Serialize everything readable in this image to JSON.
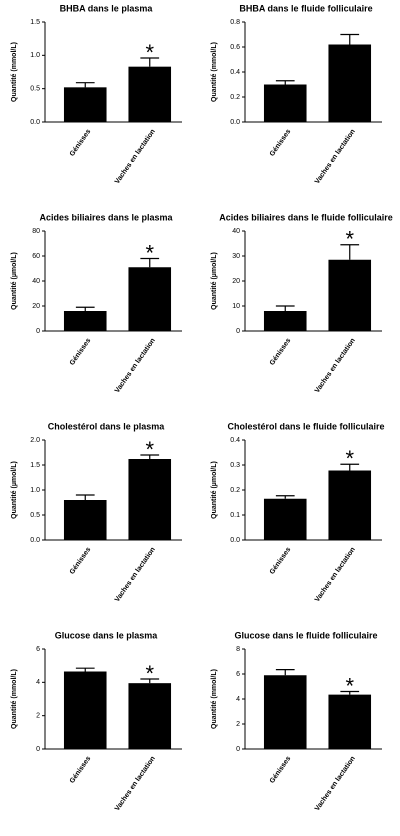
{
  "chart_data": [
    {
      "type": "bar",
      "title": "BHBA dans le plasma",
      "y_label": "Quantité (mmol/L)",
      "categories": [
        "Génisses",
        "Vaches en lactation"
      ],
      "values": [
        0.52,
        0.83
      ],
      "errors": [
        0.07,
        0.13
      ],
      "color": "#000000",
      "ylim": [
        0,
        1.5
      ],
      "yticks": [
        {
          "value": 0,
          "label": "0.0"
        },
        0.5,
        {
          "value": 1,
          "label": "1.0"
        },
        1.5
      ],
      "annotation": "*"
    },
    {
      "type": "bar",
      "title": "BHBA dans le fluide folliculaire",
      "y_label": "Quantité (mmol/L)",
      "categories": [
        "Génisses",
        "Vaches en lactation"
      ],
      "values": [
        0.3,
        0.62
      ],
      "errors": [
        0.03,
        0.08
      ],
      "color": "#000000",
      "ylim": [
        0,
        0.8
      ],
      "yticks": [
        {
          "value": 0,
          "label": "0.0"
        },
        0.2,
        0.4,
        0.6,
        0.8
      ]
    },
    {
      "type": "bar",
      "title": "Acides biliaires dans le plasma",
      "y_label": "Quantité (µmol/L)",
      "categories": [
        "Génisses",
        "Vaches en lactation"
      ],
      "values": [
        16,
        51
      ],
      "errors": [
        3,
        7
      ],
      "color": "#000000",
      "ylim": [
        0,
        80
      ],
      "yticks": [
        0,
        20,
        40,
        60,
        80
      ],
      "annotation": "*"
    },
    {
      "type": "bar",
      "title": "Acides biliaires dans le fluide folliculaire",
      "y_label": "Quantité (µmol/L)",
      "categories": [
        "Génisses",
        "Vaches en lactation"
      ],
      "values": [
        8,
        28.5
      ],
      "errors": [
        2,
        6
      ],
      "color": "#000000",
      "ylim": [
        0,
        40
      ],
      "yticks": [
        0,
        10,
        20,
        30,
        40
      ],
      "annotation": "*"
    },
    {
      "type": "bar",
      "title": "Cholestérol dans le plasma",
      "y_label": "Quantité (µmol/L)",
      "categories": [
        "Génisses",
        "Vaches en lactation"
      ],
      "values": [
        0.8,
        1.62
      ],
      "errors": [
        0.1,
        0.08
      ],
      "color": "#000000",
      "ylim": [
        0,
        2
      ],
      "yticks": [
        {
          "value": 0,
          "label": "0.0"
        },
        0.5,
        {
          "value": 1,
          "label": "1.0"
        },
        1.5,
        {
          "value": 2,
          "label": "2.0"
        }
      ],
      "annotation": "*"
    },
    {
      "type": "bar",
      "title": "Cholestérol dans le fluide folliculaire",
      "y_label": "Quantité (µmol/L)",
      "categories": [
        "Génisses",
        "Vaches en lactation"
      ],
      "values": [
        0.165,
        0.278
      ],
      "errors": [
        0.012,
        0.025
      ],
      "color": "#000000",
      "ylim": [
        0,
        0.4
      ],
      "yticks": [
        {
          "value": 0,
          "label": "0.0"
        },
        0.1,
        0.2,
        0.3,
        0.4
      ],
      "annotation": "*"
    },
    {
      "type": "bar",
      "title": "Glucose dans le plasma",
      "y_label": "Quantité (mmol/L)",
      "categories": [
        "Génisses",
        "Vaches en lactation"
      ],
      "values": [
        4.65,
        3.95
      ],
      "errors": [
        0.2,
        0.25
      ],
      "color": "#000000",
      "ylim": [
        0,
        6
      ],
      "yticks": [
        0,
        2,
        4,
        6
      ],
      "annotation": "*"
    },
    {
      "type": "bar",
      "title": "Glucose dans le fluide folliculaire",
      "y_label": "Quantité (mmol/L)",
      "categories": [
        "Génisses",
        "Vaches en lactation"
      ],
      "values": [
        5.9,
        4.35
      ],
      "errors": [
        0.45,
        0.25
      ],
      "color": "#000000",
      "ylim": [
        0,
        8
      ],
      "yticks": [
        0,
        2,
        4,
        6,
        8
      ],
      "annotation": "*"
    }
  ]
}
